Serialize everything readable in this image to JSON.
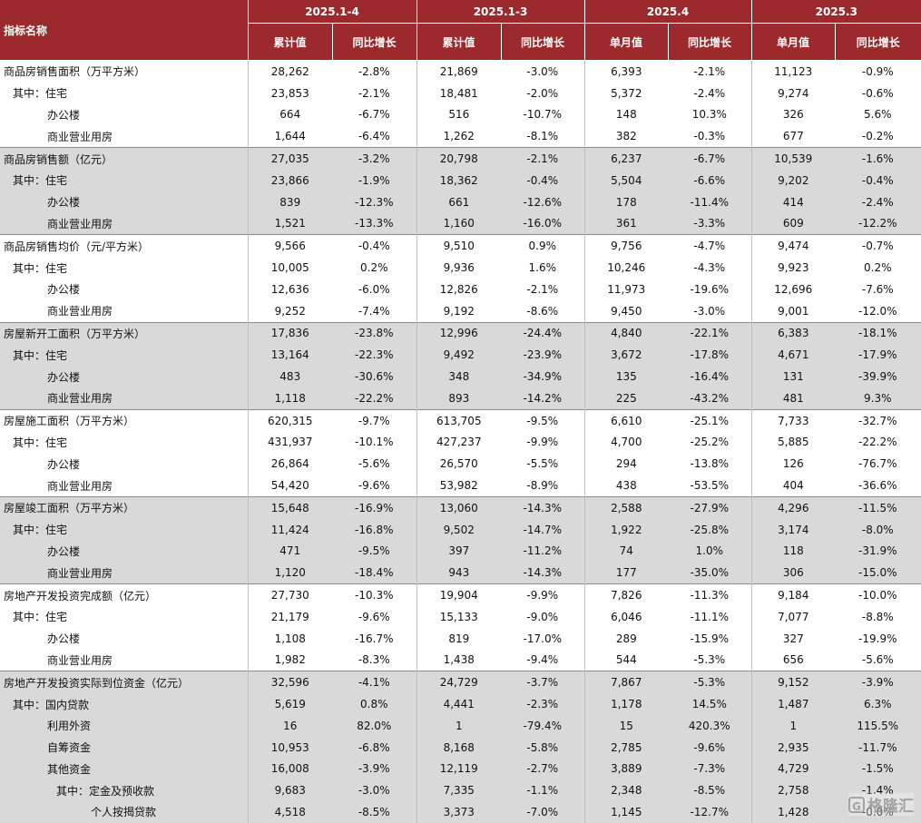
{
  "header": {
    "name_label": "指标名称",
    "groups": [
      "2025.1-4",
      "2025.1-3",
      "2025.4",
      "2025.3"
    ],
    "sub": [
      "累计值",
      "同比增长",
      "累计值",
      "同比增长",
      "单月值",
      "同比增长",
      "单月值",
      "同比增长"
    ]
  },
  "rows": [
    {
      "label": "商品房销售面积（万平方米）",
      "values": [
        "28,262",
        "-2.8%",
        "21,869",
        "-3.0%",
        "6,393",
        "-2.1%",
        "11,123",
        "-0.9%"
      ]
    },
    {
      "label": "其中：住宅",
      "values": [
        "23,853",
        "-2.1%",
        "18,481",
        "-2.0%",
        "5,372",
        "-2.4%",
        "9,274",
        "-0.6%"
      ]
    },
    {
      "label": "办公楼",
      "values": [
        "664",
        "-6.7%",
        "516",
        "-10.7%",
        "148",
        "10.3%",
        "326",
        "5.6%"
      ]
    },
    {
      "label": "商业营业用房",
      "values": [
        "1,644",
        "-6.4%",
        "1,262",
        "-8.1%",
        "382",
        "-0.3%",
        "677",
        "-0.2%"
      ]
    },
    {
      "label": "商品房销售额（亿元）",
      "values": [
        "27,035",
        "-3.2%",
        "20,798",
        "-2.1%",
        "6,237",
        "-6.7%",
        "10,539",
        "-1.6%"
      ]
    },
    {
      "label": "其中：住宅",
      "values": [
        "23,866",
        "-1.9%",
        "18,362",
        "-0.4%",
        "5,504",
        "-6.6%",
        "9,202",
        "-0.4%"
      ]
    },
    {
      "label": "办公楼",
      "values": [
        "839",
        "-12.3%",
        "661",
        "-12.6%",
        "178",
        "-11.4%",
        "414",
        "-2.4%"
      ]
    },
    {
      "label": "商业营业用房",
      "values": [
        "1,521",
        "-13.3%",
        "1,160",
        "-16.0%",
        "361",
        "-3.3%",
        "609",
        "-12.2%"
      ]
    },
    {
      "label": "商品房销售均价（元/平方米）",
      "values": [
        "9,566",
        "-0.4%",
        "9,510",
        "0.9%",
        "9,756",
        "-4.7%",
        "9,474",
        "-0.7%"
      ]
    },
    {
      "label": "其中：住宅",
      "values": [
        "10,005",
        "0.2%",
        "9,936",
        "1.6%",
        "10,246",
        "-4.3%",
        "9,923",
        "0.2%"
      ]
    },
    {
      "label": "办公楼",
      "values": [
        "12,636",
        "-6.0%",
        "12,826",
        "-2.1%",
        "11,973",
        "-19.6%",
        "12,696",
        "-7.6%"
      ]
    },
    {
      "label": "商业营业用房",
      "values": [
        "9,252",
        "-7.4%",
        "9,192",
        "-8.6%",
        "9,450",
        "-3.0%",
        "9,001",
        "-12.0%"
      ]
    },
    {
      "label": "房屋新开工面积（万平方米）",
      "values": [
        "17,836",
        "-23.8%",
        "12,996",
        "-24.4%",
        "4,840",
        "-22.1%",
        "6,383",
        "-18.1%"
      ]
    },
    {
      "label": "其中：住宅",
      "values": [
        "13,164",
        "-22.3%",
        "9,492",
        "-23.9%",
        "3,672",
        "-17.8%",
        "4,671",
        "-17.9%"
      ]
    },
    {
      "label": "办公楼",
      "values": [
        "483",
        "-30.6%",
        "348",
        "-34.9%",
        "135",
        "-16.4%",
        "131",
        "-39.9%"
      ]
    },
    {
      "label": "商业营业用房",
      "values": [
        "1,118",
        "-22.2%",
        "893",
        "-14.2%",
        "225",
        "-43.2%",
        "481",
        "9.3%"
      ]
    },
    {
      "label": "房屋施工面积（万平方米）",
      "values": [
        "620,315",
        "-9.7%",
        "613,705",
        "-9.5%",
        "6,610",
        "-25.1%",
        "7,733",
        "-32.7%"
      ]
    },
    {
      "label": "其中：住宅",
      "values": [
        "431,937",
        "-10.1%",
        "427,237",
        "-9.9%",
        "4,700",
        "-25.2%",
        "5,885",
        "-22.2%"
      ]
    },
    {
      "label": "办公楼",
      "values": [
        "26,864",
        "-5.6%",
        "26,570",
        "-5.5%",
        "294",
        "-13.8%",
        "126",
        "-76.7%"
      ]
    },
    {
      "label": "商业营业用房",
      "values": [
        "54,420",
        "-9.6%",
        "53,982",
        "-8.9%",
        "438",
        "-53.5%",
        "404",
        "-36.6%"
      ]
    },
    {
      "label": "房屋竣工面积（万平方米）",
      "values": [
        "15,648",
        "-16.9%",
        "13,060",
        "-14.3%",
        "2,588",
        "-27.9%",
        "4,296",
        "-11.5%"
      ]
    },
    {
      "label": "其中：住宅",
      "values": [
        "11,424",
        "-16.8%",
        "9,502",
        "-14.7%",
        "1,922",
        "-25.8%",
        "3,174",
        "-8.0%"
      ]
    },
    {
      "label": "办公楼",
      "values": [
        "471",
        "-9.5%",
        "397",
        "-11.2%",
        "74",
        "1.0%",
        "118",
        "-31.9%"
      ]
    },
    {
      "label": "商业营业用房",
      "values": [
        "1,120",
        "-18.4%",
        "943",
        "-14.3%",
        "177",
        "-35.0%",
        "306",
        "-15.0%"
      ]
    },
    {
      "label": "房地产开发投资完成额（亿元）",
      "values": [
        "27,730",
        "-10.3%",
        "19,904",
        "-9.9%",
        "7,826",
        "-11.3%",
        "9,184",
        "-10.0%"
      ]
    },
    {
      "label": "其中：住宅",
      "values": [
        "21,179",
        "-9.6%",
        "15,133",
        "-9.0%",
        "6,046",
        "-11.1%",
        "7,077",
        "-8.8%"
      ]
    },
    {
      "label": "办公楼",
      "values": [
        "1,108",
        "-16.7%",
        "819",
        "-17.0%",
        "289",
        "-15.9%",
        "327",
        "-19.9%"
      ]
    },
    {
      "label": "商业营业用房",
      "values": [
        "1,982",
        "-8.3%",
        "1,438",
        "-9.4%",
        "544",
        "-5.3%",
        "656",
        "-5.6%"
      ]
    },
    {
      "label": "房地产开发投资实际到位资金（亿元）",
      "values": [
        "32,596",
        "-4.1%",
        "24,729",
        "-3.7%",
        "7,867",
        "-5.3%",
        "9,152",
        "-3.9%"
      ]
    },
    {
      "label": "其中：国内贷款",
      "values": [
        "5,619",
        "0.8%",
        "4,441",
        "-2.3%",
        "1,178",
        "14.5%",
        "1,487",
        "6.3%"
      ]
    },
    {
      "label": "利用外资",
      "values": [
        "16",
        "82.0%",
        "1",
        "-79.4%",
        "15",
        "420.3%",
        "1",
        "115.5%"
      ]
    },
    {
      "label": "自筹资金",
      "values": [
        "10,953",
        "-6.8%",
        "8,168",
        "-5.8%",
        "2,785",
        "-9.6%",
        "2,935",
        "-11.7%"
      ]
    },
    {
      "label": "其他资金",
      "values": [
        "16,008",
        "-3.9%",
        "12,119",
        "-2.7%",
        "3,889",
        "-7.3%",
        "4,729",
        "-1.5%"
      ]
    },
    {
      "label": "其中：定金及预收款",
      "values": [
        "9,683",
        "-3.0%",
        "7,335",
        "-1.1%",
        "2,348",
        "-8.5%",
        "2,758",
        "-1.4%"
      ]
    },
    {
      "label": "个人按揭贷款",
      "values": [
        "4,518",
        "-8.5%",
        "3,373",
        "-7.0%",
        "1,145",
        "-12.7%",
        "1,428",
        "-0.0%"
      ]
    }
  ],
  "watermark": {
    "logo": "G",
    "text": "格隆汇"
  }
}
